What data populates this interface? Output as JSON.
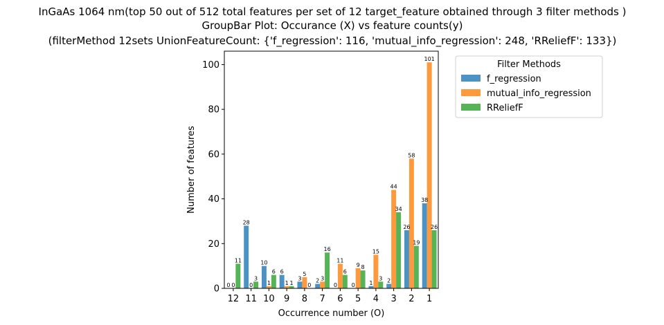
{
  "chart_data": {
    "type": "bar",
    "title": [
      "InGaAs 1064 nm(top 50 out of 512 total features per set of 12 target_feature obtained through 3 filter methods )",
      "GroupBar Plot: Occurance (X) vs feature counts(y)",
      "(filterMethod 12sets UnionFeatureCount: {'f_regression': 116, 'mutual_info_regression': 248, 'RReliefF': 133})"
    ],
    "xlabel": "Occurrence number (O)",
    "ylabel": "Number of features",
    "categories": [
      "12",
      "11",
      "10",
      "9",
      "8",
      "7",
      "6",
      "5",
      "4",
      "3",
      "2",
      "1"
    ],
    "series": [
      {
        "name": "f_regression",
        "color": "#1f77b4",
        "values": [
          0,
          28,
          10,
          6,
          3,
          2,
          0,
          0,
          1,
          2,
          26,
          38
        ]
      },
      {
        "name": "mutual_info_regression",
        "color": "#ff7f0e",
        "values": [
          0,
          0,
          1,
          1,
          5,
          3,
          11,
          9,
          15,
          44,
          58,
          101
        ]
      },
      {
        "name": "RReliefF",
        "color": "#2ca02c",
        "values": [
          11,
          3,
          6,
          1,
          0,
          16,
          6,
          8,
          3,
          34,
          19,
          26
        ]
      }
    ],
    "ylim": [
      0,
      106
    ],
    "yticks": [
      0,
      20,
      40,
      60,
      80,
      100
    ],
    "grid": false,
    "legend": {
      "title": "Filter Methods",
      "placement": "outside-right-top"
    }
  }
}
